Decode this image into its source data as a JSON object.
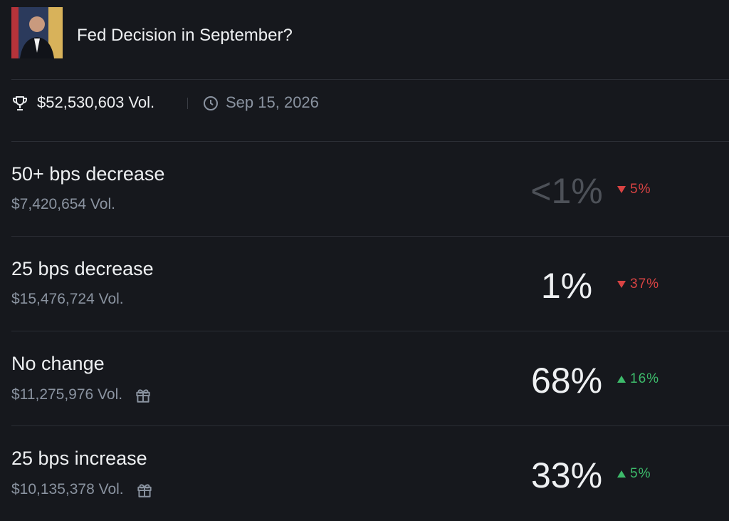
{
  "header": {
    "title": "Fed Decision in September?"
  },
  "meta": {
    "volume": "$52,530,603 Vol.",
    "date": "Sep 15, 2026"
  },
  "outcomes": [
    {
      "name": "50+ bps decrease",
      "volume": "$7,420,654 Vol.",
      "probability": "<1%",
      "probability_color": "#4d5158",
      "change": "5%",
      "trend": "down",
      "reward": false
    },
    {
      "name": "25 bps decrease",
      "volume": "$15,476,724 Vol.",
      "probability": "1%",
      "probability_color": "#eef0f2",
      "change": "37%",
      "trend": "down",
      "reward": false
    },
    {
      "name": "No change",
      "volume": "$11,275,976 Vol.",
      "probability": "68%",
      "probability_color": "#eef0f2",
      "change": "16%",
      "trend": "up",
      "reward": true
    },
    {
      "name": "25 bps increase",
      "volume": "$10,135,378 Vol.",
      "probability": "33%",
      "probability_color": "#eef0f2",
      "change": "5%",
      "trend": "up",
      "reward": true
    }
  ]
}
